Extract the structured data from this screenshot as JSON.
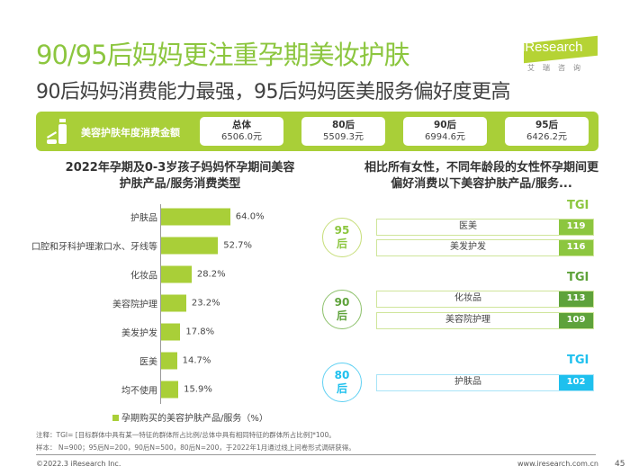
{
  "title": "90/95后妈妈更注重孕期美妆护肤",
  "subtitle": "90后妈妈消费能力最强，95后妈妈医美服务偏好度更高",
  "logo": {
    "text": "iResearch",
    "cn": "艾瑞咨询"
  },
  "band": {
    "label": "美容护肤年度消费金额",
    "cards": [
      {
        "group": "总体",
        "amount": "6506.0元"
      },
      {
        "group": "80后",
        "amount": "5509.3元"
      },
      {
        "group": "90后",
        "amount": "6994.6元"
      },
      {
        "group": "95后",
        "amount": "6426.2元"
      }
    ]
  },
  "colors": {
    "green": "#a9cf38",
    "mid_green": "#8cc63f",
    "dark_green": "#5ea23a",
    "blue": "#1ec0ee"
  },
  "chart_data": [
    {
      "type": "bar",
      "orientation": "horizontal",
      "title": "2022年孕期及0-3岁孩子妈妈怀孕期间美容护肤产品/服务消费类型",
      "categories": [
        "护肤品",
        "口腔和牙科护理漱口水、牙线等",
        "化妆品",
        "美容院护理",
        "美发护发",
        "医美",
        "均不使用"
      ],
      "values": [
        64.0,
        52.7,
        28.2,
        23.2,
        17.8,
        14.7,
        15.9
      ],
      "labels": [
        "64.0%",
        "52.7%",
        "28.2%",
        "23.2%",
        "17.8%",
        "14.7%",
        "15.9%"
      ],
      "series": [
        {
          "name": "孕期购买的美容护肤产品/服务（%）"
        }
      ],
      "legend": "bottom",
      "grid": false
    },
    {
      "type": "table",
      "title": "相比所有女性，不同年龄段的女性怀孕期间更偏好消费以下美容护肤产品/服务...",
      "header": "TGI",
      "groups": [
        {
          "group": "95后",
          "items": [
            {
              "name": "医美",
              "tgi": "119"
            },
            {
              "name": "美发护发",
              "tgi": "116"
            }
          ]
        },
        {
          "group": "90后",
          "items": [
            {
              "name": "化妆品",
              "tgi": "113"
            },
            {
              "name": "美容院护理",
              "tgi": "109"
            }
          ]
        },
        {
          "group": "80后",
          "items": [
            {
              "name": "护肤品",
              "tgi": "102"
            }
          ]
        }
      ]
    }
  ],
  "notes": [
    "注释：TGI= [目标群体中具有某一特征的群体所占比例/总体中具有相同特征的群体所占比例]*100。",
    "样本： N=900；95后N=200，90后N=500，80后N=200，于2022年1月通过线上问卷形式调研获得。"
  ],
  "footer": {
    "copyright": "©2022.3 iResearch Inc.",
    "url": "www.iresearch.com.cn",
    "page": "45"
  }
}
